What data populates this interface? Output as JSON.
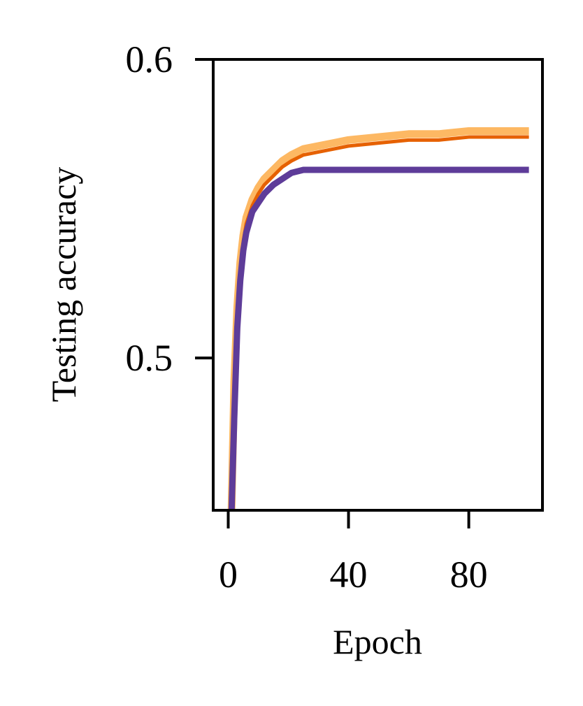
{
  "chart_data": {
    "type": "line",
    "x_label": "Epoch",
    "y_label": "Testing accuracy",
    "x": [
      1,
      2,
      3,
      4,
      5,
      6,
      8,
      10,
      12,
      15,
      18,
      21,
      25,
      30,
      35,
      40,
      50,
      60,
      70,
      80,
      90,
      100
    ],
    "series": [
      {
        "color": "#fdb863",
        "values": [
          0.445,
          0.492,
          0.517,
          0.532,
          0.541,
          0.547,
          0.553,
          0.557,
          0.56,
          0.563,
          0.566,
          0.568,
          0.57,
          0.571,
          0.572,
          0.573,
          0.574,
          0.575,
          0.575,
          0.576,
          0.576,
          0.576
        ]
      },
      {
        "color": "#e66101",
        "values": [
          0.445,
          0.49,
          0.515,
          0.53,
          0.539,
          0.545,
          0.551,
          0.555,
          0.558,
          0.561,
          0.564,
          0.566,
          0.568,
          0.569,
          0.57,
          0.571,
          0.572,
          0.573,
          0.573,
          0.574,
          0.574,
          0.574
        ]
      },
      {
        "color": "#5e3c99",
        "values": [
          0.445,
          0.48,
          0.51,
          0.526,
          0.536,
          0.542,
          0.549,
          0.552,
          0.555,
          0.558,
          0.56,
          0.562,
          0.563,
          0.563,
          0.563,
          0.563,
          0.563,
          0.563,
          0.563,
          0.563,
          0.563,
          0.563
        ]
      }
    ],
    "xlim": [
      -5,
      104.5
    ],
    "xticks": [
      0,
      40,
      80
    ],
    "ylim": [
      0.449,
      0.6
    ],
    "yticks": [
      0.5,
      0.6
    ]
  }
}
